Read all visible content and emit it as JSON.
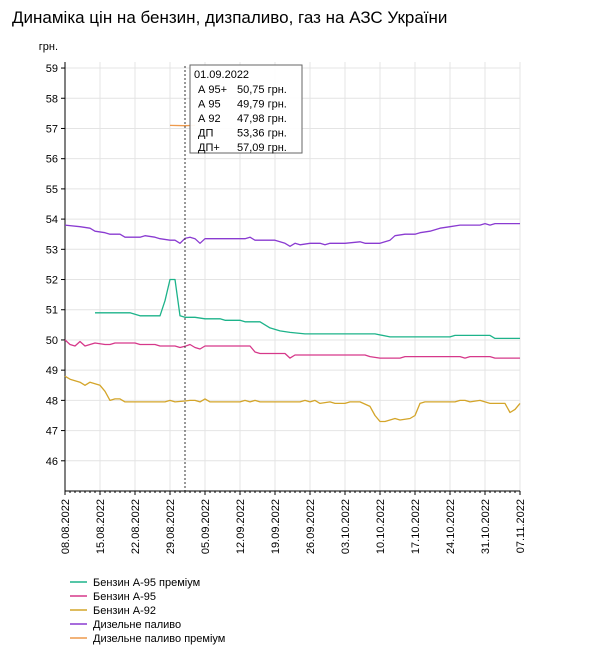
{
  "chart_data": {
    "type": "line",
    "title": "Динаміка цін на бензин, дизпаливо, газ на АЗС України",
    "ylabel": "грн.",
    "ylim": [
      45,
      59.2
    ],
    "yticks": [
      46,
      47,
      48,
      49,
      50,
      51,
      52,
      53,
      54,
      55,
      56,
      57,
      58,
      59
    ],
    "xlim": [
      "2022-08-08",
      "2022-11-07"
    ],
    "x_tick_labels": [
      "08.08.2022",
      "15.08.2022",
      "22.08.2022",
      "29.08.2022",
      "05.09.2022",
      "12.09.2022",
      "19.09.2022",
      "26.09.2022",
      "03.10.2022",
      "10.10.2022",
      "17.10.2022",
      "24.10.2022",
      "31.10.2022",
      "07.11.2022"
    ],
    "x_tick_dates": [
      "2022-08-08",
      "2022-08-15",
      "2022-08-22",
      "2022-08-29",
      "2022-09-05",
      "2022-09-12",
      "2022-09-19",
      "2022-09-26",
      "2022-10-03",
      "2022-10-10",
      "2022-10-17",
      "2022-10-24",
      "2022-10-31",
      "2022-11-07"
    ],
    "grid": true,
    "legend_position": "bottom-left",
    "series": [
      {
        "name": "Бензин А-95 преміум",
        "color": "#1db38a",
        "points": [
          [
            "2022-08-14",
            50.9
          ],
          [
            "2022-08-21",
            50.9
          ],
          [
            "2022-08-23",
            50.8
          ],
          [
            "2022-08-27",
            50.8
          ],
          [
            "2022-08-28",
            51.3
          ],
          [
            "2022-08-29",
            52.0
          ],
          [
            "2022-08-30",
            52.0
          ],
          [
            "2022-08-31",
            50.8
          ],
          [
            "2022-09-01",
            50.75
          ],
          [
            "2022-09-03",
            50.75
          ],
          [
            "2022-09-05",
            50.7
          ],
          [
            "2022-09-08",
            50.7
          ],
          [
            "2022-09-09",
            50.65
          ],
          [
            "2022-09-12",
            50.65
          ],
          [
            "2022-09-13",
            50.6
          ],
          [
            "2022-09-16",
            50.6
          ],
          [
            "2022-09-18",
            50.4
          ],
          [
            "2022-09-20",
            50.3
          ],
          [
            "2022-09-22",
            50.25
          ],
          [
            "2022-09-25",
            50.2
          ],
          [
            "2022-09-28",
            50.2
          ],
          [
            "2022-10-09",
            50.2
          ],
          [
            "2022-10-12",
            50.1
          ],
          [
            "2022-10-23",
            50.1
          ],
          [
            "2022-10-24",
            50.1
          ],
          [
            "2022-10-25",
            50.15
          ],
          [
            "2022-11-01",
            50.15
          ],
          [
            "2022-11-02",
            50.05
          ],
          [
            "2022-11-07",
            50.05
          ]
        ]
      },
      {
        "name": "Бензин А-95",
        "color": "#d6388a",
        "points": [
          [
            "2022-08-08",
            50.0
          ],
          [
            "2022-08-09",
            49.85
          ],
          [
            "2022-08-10",
            49.8
          ],
          [
            "2022-08-11",
            49.95
          ],
          [
            "2022-08-12",
            49.8
          ],
          [
            "2022-08-13",
            49.85
          ],
          [
            "2022-08-14",
            49.9
          ],
          [
            "2022-08-16",
            49.85
          ],
          [
            "2022-08-17",
            49.85
          ],
          [
            "2022-08-18",
            49.9
          ],
          [
            "2022-08-22",
            49.9
          ],
          [
            "2022-08-23",
            49.85
          ],
          [
            "2022-08-26",
            49.85
          ],
          [
            "2022-08-27",
            49.8
          ],
          [
            "2022-08-30",
            49.8
          ],
          [
            "2022-08-31",
            49.75
          ],
          [
            "2022-09-01",
            49.79
          ],
          [
            "2022-09-02",
            49.85
          ],
          [
            "2022-09-03",
            49.75
          ],
          [
            "2022-09-04",
            49.7
          ],
          [
            "2022-09-05",
            49.8
          ],
          [
            "2022-09-14",
            49.8
          ],
          [
            "2022-09-15",
            49.6
          ],
          [
            "2022-09-16",
            49.55
          ],
          [
            "2022-09-21",
            49.55
          ],
          [
            "2022-09-22",
            49.4
          ],
          [
            "2022-09-23",
            49.5
          ],
          [
            "2022-10-07",
            49.5
          ],
          [
            "2022-10-08",
            49.45
          ],
          [
            "2022-10-10",
            49.4
          ],
          [
            "2022-10-14",
            49.4
          ],
          [
            "2022-10-15",
            49.45
          ],
          [
            "2022-10-26",
            49.45
          ],
          [
            "2022-10-27",
            49.4
          ],
          [
            "2022-10-28",
            49.45
          ],
          [
            "2022-11-01",
            49.45
          ],
          [
            "2022-11-02",
            49.4
          ],
          [
            "2022-11-07",
            49.4
          ]
        ]
      },
      {
        "name": "Бензин А-92",
        "color": "#d4a52a",
        "points": [
          [
            "2022-08-08",
            48.8
          ],
          [
            "2022-08-09",
            48.7
          ],
          [
            "2022-08-10",
            48.65
          ],
          [
            "2022-08-11",
            48.6
          ],
          [
            "2022-08-12",
            48.5
          ],
          [
            "2022-08-13",
            48.6
          ],
          [
            "2022-08-14",
            48.55
          ],
          [
            "2022-08-15",
            48.5
          ],
          [
            "2022-08-16",
            48.3
          ],
          [
            "2022-08-17",
            48.0
          ],
          [
            "2022-08-18",
            48.05
          ],
          [
            "2022-08-19",
            48.05
          ],
          [
            "2022-08-20",
            47.95
          ],
          [
            "2022-08-28",
            47.95
          ],
          [
            "2022-08-29",
            48.0
          ],
          [
            "2022-08-30",
            47.95
          ],
          [
            "2022-09-01",
            47.98
          ],
          [
            "2022-09-02",
            48.0
          ],
          [
            "2022-09-03",
            48.0
          ],
          [
            "2022-09-04",
            47.95
          ],
          [
            "2022-09-05",
            48.05
          ],
          [
            "2022-09-06",
            47.95
          ],
          [
            "2022-09-12",
            47.95
          ],
          [
            "2022-09-13",
            48.0
          ],
          [
            "2022-09-14",
            47.95
          ],
          [
            "2022-09-15",
            48.0
          ],
          [
            "2022-09-16",
            47.95
          ],
          [
            "2022-09-24",
            47.95
          ],
          [
            "2022-09-25",
            48.0
          ],
          [
            "2022-09-26",
            47.95
          ],
          [
            "2022-09-27",
            48.0
          ],
          [
            "2022-09-28",
            47.9
          ],
          [
            "2022-09-30",
            47.95
          ],
          [
            "2022-10-01",
            47.9
          ],
          [
            "2022-10-03",
            47.9
          ],
          [
            "2022-10-04",
            47.95
          ],
          [
            "2022-10-06",
            47.95
          ],
          [
            "2022-10-08",
            47.8
          ],
          [
            "2022-10-09",
            47.5
          ],
          [
            "2022-10-10",
            47.3
          ],
          [
            "2022-10-11",
            47.3
          ],
          [
            "2022-10-13",
            47.4
          ],
          [
            "2022-10-14",
            47.35
          ],
          [
            "2022-10-16",
            47.4
          ],
          [
            "2022-10-17",
            47.5
          ],
          [
            "2022-10-18",
            47.9
          ],
          [
            "2022-10-19",
            47.95
          ],
          [
            "2022-10-25",
            47.95
          ],
          [
            "2022-10-26",
            48.0
          ],
          [
            "2022-10-27",
            48.0
          ],
          [
            "2022-10-28",
            47.95
          ],
          [
            "2022-10-30",
            48.0
          ],
          [
            "2022-10-31",
            47.95
          ],
          [
            "2022-11-01",
            47.9
          ],
          [
            "2022-11-04",
            47.9
          ],
          [
            "2022-11-05",
            47.6
          ],
          [
            "2022-11-06",
            47.7
          ],
          [
            "2022-11-07",
            47.9
          ]
        ]
      },
      {
        "name": "Дизельне паливо",
        "color": "#8a3bd1",
        "points": [
          [
            "2022-08-08",
            53.8
          ],
          [
            "2022-08-11",
            53.75
          ],
          [
            "2022-08-13",
            53.7
          ],
          [
            "2022-08-14",
            53.6
          ],
          [
            "2022-08-16",
            53.55
          ],
          [
            "2022-08-17",
            53.5
          ],
          [
            "2022-08-19",
            53.5
          ],
          [
            "2022-08-20",
            53.4
          ],
          [
            "2022-08-23",
            53.4
          ],
          [
            "2022-08-24",
            53.45
          ],
          [
            "2022-08-26",
            53.4
          ],
          [
            "2022-08-27",
            53.35
          ],
          [
            "2022-08-29",
            53.3
          ],
          [
            "2022-08-30",
            53.3
          ],
          [
            "2022-08-31",
            53.2
          ],
          [
            "2022-09-01",
            53.36
          ],
          [
            "2022-09-02",
            53.4
          ],
          [
            "2022-09-03",
            53.35
          ],
          [
            "2022-09-04",
            53.2
          ],
          [
            "2022-09-05",
            53.35
          ],
          [
            "2022-09-13",
            53.35
          ],
          [
            "2022-09-14",
            53.4
          ],
          [
            "2022-09-15",
            53.3
          ],
          [
            "2022-09-19",
            53.3
          ],
          [
            "2022-09-20",
            53.25
          ],
          [
            "2022-09-21",
            53.2
          ],
          [
            "2022-09-22",
            53.1
          ],
          [
            "2022-09-23",
            53.2
          ],
          [
            "2022-09-24",
            53.15
          ],
          [
            "2022-09-26",
            53.2
          ],
          [
            "2022-09-28",
            53.2
          ],
          [
            "2022-09-29",
            53.15
          ],
          [
            "2022-09-30",
            53.2
          ],
          [
            "2022-10-03",
            53.2
          ],
          [
            "2022-10-06",
            53.25
          ],
          [
            "2022-10-07",
            53.2
          ],
          [
            "2022-10-10",
            53.2
          ],
          [
            "2022-10-12",
            53.3
          ],
          [
            "2022-10-13",
            53.45
          ],
          [
            "2022-10-15",
            53.5
          ],
          [
            "2022-10-17",
            53.5
          ],
          [
            "2022-10-18",
            53.55
          ],
          [
            "2022-10-20",
            53.6
          ],
          [
            "2022-10-22",
            53.7
          ],
          [
            "2022-10-24",
            53.75
          ],
          [
            "2022-10-26",
            53.8
          ],
          [
            "2022-10-30",
            53.8
          ],
          [
            "2022-10-31",
            53.85
          ],
          [
            "2022-11-01",
            53.8
          ],
          [
            "2022-11-02",
            53.85
          ],
          [
            "2022-11-07",
            53.85
          ]
        ]
      },
      {
        "name": "Дизельне паливо преміум",
        "color": "#ee9a4d",
        "points": [
          [
            "2022-08-29",
            57.1
          ],
          [
            "2022-09-01",
            57.09
          ],
          [
            "2022-09-03",
            57.1
          ]
        ]
      }
    ],
    "tooltip": {
      "date": "01.09.2022",
      "date_value": "2022-09-01",
      "rows": [
        {
          "label": "А 95+",
          "value": "50,75 грн."
        },
        {
          "label": "А 95",
          "value": "49,79 грн."
        },
        {
          "label": "А 92",
          "value": "47,98 грн."
        },
        {
          "label": "ДП",
          "value": "53,36 грн."
        },
        {
          "label": "ДП+",
          "value": "57,09 грн."
        }
      ]
    }
  }
}
